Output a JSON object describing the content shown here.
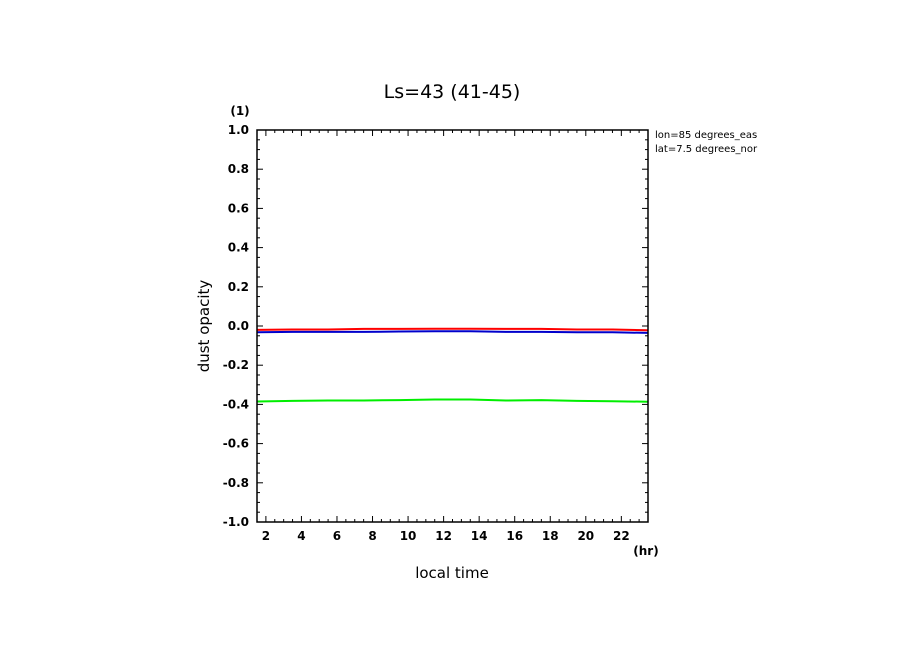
{
  "chart_data": {
    "type": "line",
    "title": "Ls=43 (41-45)",
    "xlabel": "local time",
    "ylabel": "dust opacity",
    "x_unit": "(hr)",
    "y_unit": "(1)",
    "xlim": [
      1.5,
      23.5
    ],
    "ylim": [
      -1.0,
      1.0
    ],
    "x_ticks": [
      "2",
      "4",
      "6",
      "8",
      "10",
      "12",
      "14",
      "16",
      "18",
      "20",
      "22"
    ],
    "y_ticks": [
      "1.0",
      "0.8",
      "0.6",
      "0.4",
      "0.2",
      "0.0",
      "-0.2",
      "-0.4",
      "-0.6",
      "-0.8",
      "-1.0"
    ],
    "x": [
      1.5,
      3.5,
      5.5,
      7.5,
      9.5,
      11.5,
      13.5,
      15.5,
      17.5,
      19.5,
      21.5,
      23.5
    ],
    "series": [
      {
        "color": "#ff0000",
        "values": [
          -0.02,
          -0.018,
          -0.018,
          -0.015,
          -0.015,
          -0.014,
          -0.014,
          -0.015,
          -0.015,
          -0.018,
          -0.018,
          -0.022
        ]
      },
      {
        "color": "#0000cc",
        "values": [
          -0.032,
          -0.03,
          -0.03,
          -0.03,
          -0.028,
          -0.027,
          -0.027,
          -0.03,
          -0.03,
          -0.032,
          -0.032,
          -0.035
        ]
      },
      {
        "color": "#00ee00",
        "values": [
          -0.385,
          -0.382,
          -0.38,
          -0.38,
          -0.378,
          -0.375,
          -0.375,
          -0.38,
          -0.378,
          -0.382,
          -0.384,
          -0.386
        ]
      }
    ],
    "annotations": [
      "lon=85 degrees_eas",
      "lat=7.5 degrees_nor"
    ],
    "grid": false,
    "legend": "none"
  }
}
